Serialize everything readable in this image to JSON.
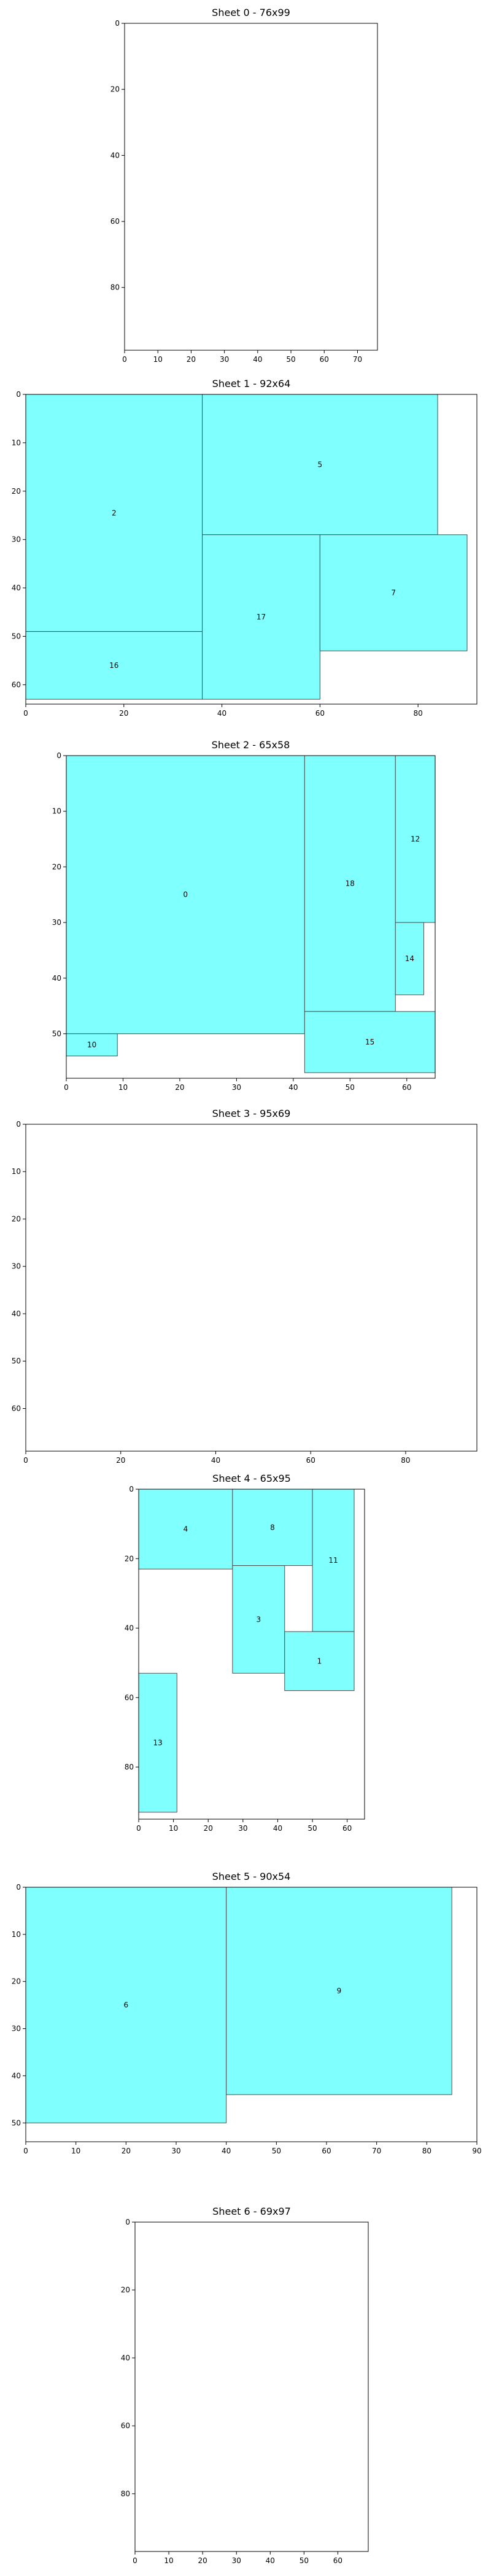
{
  "chart_data": [
    {
      "type": "rectangle-packing",
      "title": "Sheet 0 - 76x99",
      "width": 76,
      "height": 99,
      "xticks": [
        0,
        10,
        20,
        30,
        40,
        50,
        60,
        70
      ],
      "yticks": [
        0,
        20,
        40,
        60,
        80
      ],
      "pieces": []
    },
    {
      "type": "rectangle-packing",
      "title": "Sheet 1 - 92x64",
      "width": 92,
      "height": 64,
      "xticks": [
        0,
        20,
        40,
        60,
        80
      ],
      "yticks": [
        0,
        10,
        20,
        30,
        40,
        50,
        60
      ],
      "pieces": [
        {
          "id": "2",
          "x": 0,
          "y": 0,
          "w": 36,
          "h": 49
        },
        {
          "id": "5",
          "x": 36,
          "y": 0,
          "w": 48,
          "h": 29
        },
        {
          "id": "16",
          "x": 0,
          "y": 49,
          "w": 36,
          "h": 14
        },
        {
          "id": "17",
          "x": 36,
          "y": 29,
          "w": 24,
          "h": 34
        },
        {
          "id": "7",
          "x": 60,
          "y": 29,
          "w": 30,
          "h": 24
        }
      ]
    },
    {
      "type": "rectangle-packing",
      "title": "Sheet 2 - 65x58",
      "width": 65,
      "height": 58,
      "xticks": [
        0,
        10,
        20,
        30,
        40,
        50,
        60
      ],
      "yticks": [
        0,
        10,
        20,
        30,
        40,
        50
      ],
      "pieces": [
        {
          "id": "0",
          "x": 0,
          "y": 0,
          "w": 42,
          "h": 50
        },
        {
          "id": "18",
          "x": 42,
          "y": 0,
          "w": 16,
          "h": 46
        },
        {
          "id": "12",
          "x": 58,
          "y": 0,
          "w": 7,
          "h": 30
        },
        {
          "id": "14",
          "x": 58,
          "y": 30,
          "w": 5,
          "h": 13
        },
        {
          "id": "15",
          "x": 42,
          "y": 46,
          "w": 23,
          "h": 11
        },
        {
          "id": "10",
          "x": 0,
          "y": 50,
          "w": 9,
          "h": 4
        }
      ]
    },
    {
      "type": "rectangle-packing",
      "title": "Sheet 3 - 95x69",
      "width": 95,
      "height": 69,
      "xticks": [
        0,
        20,
        40,
        60,
        80
      ],
      "yticks": [
        0,
        10,
        20,
        30,
        40,
        50,
        60
      ],
      "pieces": []
    },
    {
      "type": "rectangle-packing",
      "title": "Sheet 4 - 65x95",
      "width": 65,
      "height": 95,
      "xticks": [
        0,
        10,
        20,
        30,
        40,
        50,
        60
      ],
      "yticks": [
        0,
        20,
        40,
        60,
        80
      ],
      "pieces": [
        {
          "id": "4",
          "x": 0,
          "y": 0,
          "w": 27,
          "h": 23
        },
        {
          "id": "8",
          "x": 27,
          "y": 0,
          "w": 23,
          "h": 22
        },
        {
          "id": "11",
          "x": 50,
          "y": 0,
          "w": 12,
          "h": 41
        },
        {
          "id": "3",
          "x": 27,
          "y": 22,
          "w": 15,
          "h": 31
        },
        {
          "id": "1",
          "x": 42,
          "y": 41,
          "w": 20,
          "h": 17
        },
        {
          "id": "13",
          "x": 0,
          "y": 53,
          "w": 11,
          "h": 40
        }
      ]
    },
    {
      "type": "rectangle-packing",
      "title": "Sheet 5 - 90x54",
      "width": 90,
      "height": 54,
      "xticks": [
        0,
        10,
        20,
        30,
        40,
        50,
        60,
        70,
        80,
        90
      ],
      "yticks": [
        0,
        10,
        20,
        30,
        40,
        50
      ],
      "pieces": [
        {
          "id": "6",
          "x": 0,
          "y": 0,
          "w": 40,
          "h": 50
        },
        {
          "id": "9",
          "x": 40,
          "y": 0,
          "w": 45,
          "h": 44
        }
      ]
    },
    {
      "type": "rectangle-packing",
      "title": "Sheet 6 - 69x97",
      "width": 69,
      "height": 97,
      "xticks": [
        0,
        10,
        20,
        30,
        40,
        50,
        60
      ],
      "yticks": [
        0,
        20,
        40,
        60,
        80
      ],
      "pieces": []
    }
  ],
  "colors": {
    "piece_fill": "#80ffff",
    "piece_edge": "#4d4d4d",
    "axis": "#000000"
  }
}
